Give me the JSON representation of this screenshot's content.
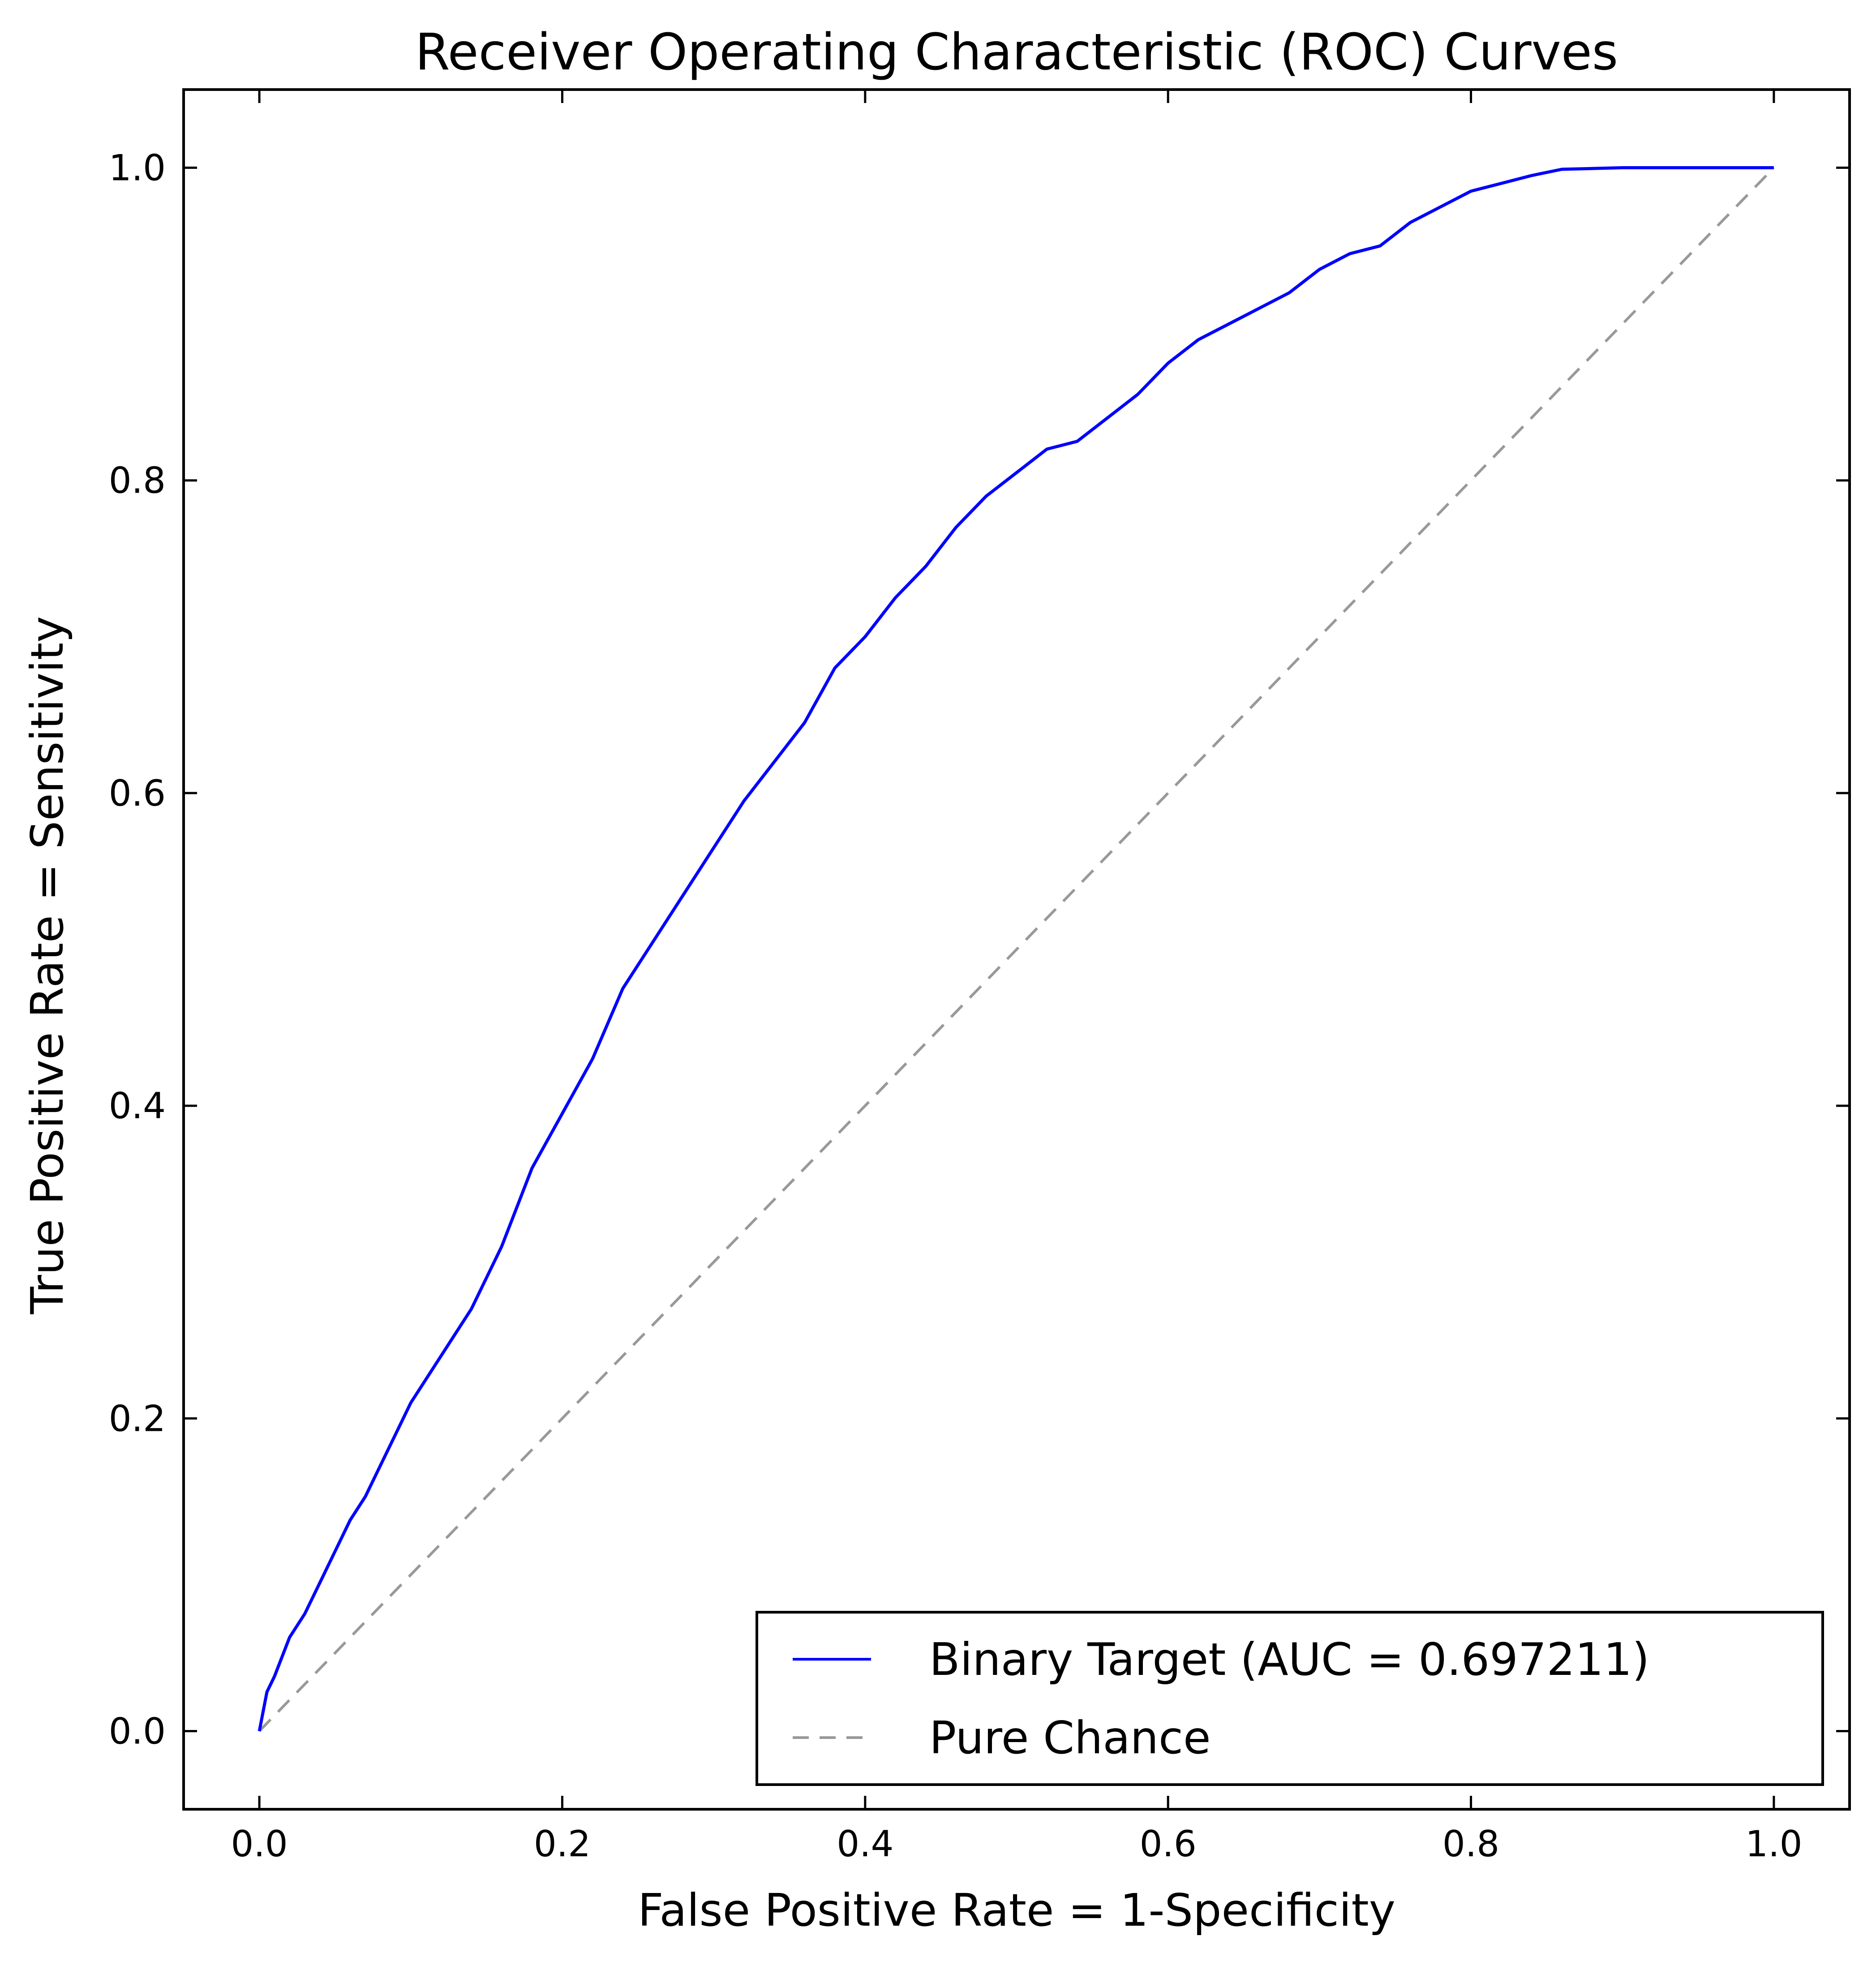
{
  "chart_data": {
    "type": "line",
    "title": "Receiver Operating Characteristic (ROC) Curves",
    "xlabel": "False Positive Rate = 1-Specificity",
    "ylabel": "True Positive Rate = Sensitivity",
    "xlim": [
      -0.05,
      1.05
    ],
    "ylim": [
      -0.05,
      1.05
    ],
    "xticks": [
      "0.0",
      "0.2",
      "0.4",
      "0.6",
      "0.8",
      "1.0"
    ],
    "yticks": [
      "0.0",
      "0.2",
      "0.4",
      "0.6",
      "0.8",
      "1.0"
    ],
    "grid": false,
    "legend_position": "lower-right",
    "series": [
      {
        "name": "Binary Target (AUC = 0.697211)",
        "color": "#0000ff",
        "style": "solid",
        "x": [
          0.0,
          0.005,
          0.01,
          0.02,
          0.03,
          0.04,
          0.05,
          0.06,
          0.07,
          0.08,
          0.09,
          0.1,
          0.12,
          0.14,
          0.16,
          0.18,
          0.2,
          0.22,
          0.24,
          0.26,
          0.28,
          0.3,
          0.32,
          0.34,
          0.36,
          0.38,
          0.4,
          0.42,
          0.44,
          0.46,
          0.48,
          0.5,
          0.52,
          0.54,
          0.56,
          0.58,
          0.6,
          0.62,
          0.64,
          0.66,
          0.68,
          0.7,
          0.72,
          0.74,
          0.76,
          0.78,
          0.8,
          0.82,
          0.84,
          0.86,
          0.9,
          0.95,
          1.0
        ],
        "y": [
          0.0,
          0.025,
          0.035,
          0.06,
          0.075,
          0.095,
          0.115,
          0.135,
          0.15,
          0.17,
          0.19,
          0.21,
          0.24,
          0.27,
          0.31,
          0.36,
          0.395,
          0.43,
          0.475,
          0.505,
          0.535,
          0.565,
          0.595,
          0.62,
          0.645,
          0.68,
          0.7,
          0.725,
          0.745,
          0.77,
          0.79,
          0.805,
          0.82,
          0.825,
          0.84,
          0.855,
          0.875,
          0.89,
          0.9,
          0.91,
          0.92,
          0.935,
          0.945,
          0.95,
          0.965,
          0.975,
          0.985,
          0.99,
          0.995,
          0.999,
          1.0,
          1.0,
          1.0
        ]
      },
      {
        "name": "Pure Chance",
        "color": "#999999",
        "style": "dashed",
        "x": [
          0.0,
          1.0
        ],
        "y": [
          0.0,
          1.0
        ]
      }
    ]
  }
}
